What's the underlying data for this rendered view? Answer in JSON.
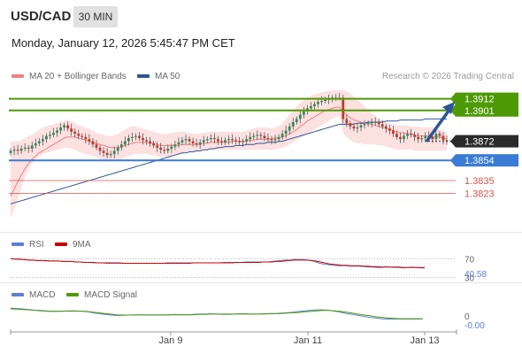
{
  "header": {
    "pair": "USD/CAD",
    "timeframe": "30 MIN",
    "datetime": "Monday, January 12, 2026 5:45:47 PM CET"
  },
  "legend": {
    "ma20": "MA 20 + Bollinger Bands",
    "ma50": "MA 50",
    "copyright": "Research © 2026 Trading Central"
  },
  "colors": {
    "resistance": "#4e9a06",
    "support_blue": "#3a7bd5",
    "support_red": "#d9534f",
    "current_price": "#2b2b2b",
    "ma20": "#f08080",
    "ma50": "#2f5597",
    "rsi": "#5b7fd6",
    "rsi_9ma": "#cc0000",
    "macd": "#5b7fd6",
    "macd_signal": "#4e9a06",
    "candle_up": "#2e8b57",
    "candle_down": "#c0392b"
  },
  "chart_data": [
    {
      "type": "candlestick",
      "ylim": [
        1.379,
        1.3925
      ],
      "series": [
        {
          "name": "MA 20 + Bollinger Bands"
        },
        {
          "name": "MA 50"
        }
      ],
      "closes": [
        1.3863,
        1.3864,
        1.3863,
        1.3865,
        1.3866,
        1.3865,
        1.3868,
        1.387,
        1.3872,
        1.3874,
        1.3877,
        1.3878,
        1.388,
        1.3882,
        1.3885,
        1.3887,
        1.3884,
        1.3881,
        1.3879,
        1.3877,
        1.3876,
        1.3874,
        1.3872,
        1.3869,
        1.3866,
        1.3863,
        1.3861,
        1.3859,
        1.386,
        1.3863,
        1.3866,
        1.3869,
        1.3872,
        1.3875,
        1.3876,
        1.3877,
        1.3875,
        1.3873,
        1.3872,
        1.387,
        1.3868,
        1.3866,
        1.3864,
        1.3863,
        1.3865,
        1.3867,
        1.3869,
        1.3871,
        1.3873,
        1.3874,
        1.3872,
        1.387,
        1.3869,
        1.3871,
        1.3873,
        1.3874,
        1.3875,
        1.3874,
        1.3872,
        1.3871,
        1.3873,
        1.3874,
        1.3873,
        1.3872,
        1.3871,
        1.3872,
        1.3874,
        1.3876,
        1.3877,
        1.3878,
        1.3877,
        1.3875,
        1.3874,
        1.3873,
        1.3874,
        1.3876,
        1.3879,
        1.3882,
        1.3886,
        1.389,
        1.3893,
        1.3897,
        1.39,
        1.3903,
        1.3905,
        1.3907,
        1.3909,
        1.391,
        1.3911,
        1.3912,
        1.3913,
        1.3913,
        1.3913,
        1.3893,
        1.3889,
        1.3886,
        1.3884,
        1.3885,
        1.3887,
        1.3888,
        1.3889,
        1.389,
        1.389,
        1.3888,
        1.3886,
        1.3884,
        1.3882,
        1.3879,
        1.3876,
        1.3874,
        1.3877,
        1.3879,
        1.3878,
        1.3876,
        1.3874,
        1.3875,
        1.3877,
        1.3876,
        1.3874,
        1.3879,
        1.3877,
        1.3873,
        1.3872
      ],
      "bands_upper": [
        1.3871,
        1.3872,
        1.3872,
        1.3873,
        1.3875,
        1.3877,
        1.3878,
        1.388,
        1.3883,
        1.3885,
        1.3886,
        1.3887,
        1.3888,
        1.3889,
        1.389,
        1.3891,
        1.3892,
        1.3891,
        1.3889,
        1.3887,
        1.3886,
        1.3885,
        1.3884,
        1.3882,
        1.388,
        1.3879,
        1.3878,
        1.3877,
        1.3877,
        1.3878,
        1.3879,
        1.3881,
        1.3883,
        1.3885,
        1.3886,
        1.3886,
        1.3885,
        1.3884,
        1.3883,
        1.3882,
        1.3881,
        1.388,
        1.3879,
        1.3879,
        1.3879,
        1.388,
        1.388,
        1.3881,
        1.3881,
        1.3881,
        1.388,
        1.3879,
        1.3879,
        1.3879,
        1.388,
        1.388,
        1.3881,
        1.3881,
        1.3881,
        1.3881,
        1.3881,
        1.3881,
        1.3881,
        1.3881,
        1.3881,
        1.3881,
        1.3882,
        1.3883,
        1.3884,
        1.3885,
        1.3885,
        1.3885,
        1.3885,
        1.3884,
        1.3885,
        1.3886,
        1.3889,
        1.3893,
        1.3897,
        1.3901,
        1.3905,
        1.3908,
        1.3911,
        1.3913,
        1.3915,
        1.3916,
        1.3917,
        1.3918,
        1.3919,
        1.3919,
        1.392,
        1.392,
        1.392,
        1.392,
        1.3919,
        1.3917,
        1.3914,
        1.3911,
        1.3908,
        1.3905,
        1.3901,
        1.3898,
        1.3896,
        1.3893,
        1.3891,
        1.389,
        1.3889,
        1.3888,
        1.3887,
        1.3887,
        1.3887,
        1.3887,
        1.3886,
        1.3886,
        1.3886,
        1.3885,
        1.3885,
        1.3885,
        1.3885,
        1.3884,
        1.3883,
        1.3882,
        1.388
      ],
      "bands_lower": [
        1.38,
        1.3808,
        1.3818,
        1.3828,
        1.3838,
        1.3845,
        1.3851,
        1.3855,
        1.3858,
        1.386,
        1.3861,
        1.3862,
        1.3863,
        1.3864,
        1.3865,
        1.3866,
        1.3866,
        1.3865,
        1.3864,
        1.3862,
        1.3861,
        1.386,
        1.3859,
        1.3858,
        1.3857,
        1.3855,
        1.3854,
        1.3853,
        1.3853,
        1.3853,
        1.3854,
        1.3855,
        1.3857,
        1.3858,
        1.3859,
        1.386,
        1.386,
        1.386,
        1.386,
        1.3859,
        1.3859,
        1.3858,
        1.3857,
        1.3857,
        1.3857,
        1.3858,
        1.3859,
        1.386,
        1.3861,
        1.3862,
        1.3862,
        1.3862,
        1.3862,
        1.3862,
        1.3863,
        1.3863,
        1.3864,
        1.3864,
        1.3864,
        1.3864,
        1.3864,
        1.3864,
        1.3864,
        1.3864,
        1.3864,
        1.3864,
        1.3864,
        1.3864,
        1.3864,
        1.3864,
        1.3864,
        1.3864,
        1.3864,
        1.3864,
        1.3864,
        1.3865,
        1.3866,
        1.3867,
        1.3869,
        1.3871,
        1.3873,
        1.3875,
        1.3877,
        1.3879,
        1.3881,
        1.3883,
        1.3885,
        1.3887,
        1.3889,
        1.3891,
        1.3893,
        1.3895,
        1.3896,
        1.388,
        1.3876,
        1.3873,
        1.3871,
        1.387,
        1.387,
        1.3869,
        1.3869,
        1.3869,
        1.3869,
        1.3868,
        1.3868,
        1.3867,
        1.3866,
        1.3865,
        1.3864,
        1.3864,
        1.3864,
        1.3864,
        1.3864,
        1.3863,
        1.3863,
        1.3863,
        1.3863,
        1.3863,
        1.3863,
        1.3863,
        1.3863,
        1.3863,
        1.3863
      ],
      "ma20": [
        1.382,
        1.3827,
        1.3834,
        1.384,
        1.3846,
        1.3851,
        1.3855,
        1.3858,
        1.3861,
        1.3863,
        1.3865,
        1.3867,
        1.3869,
        1.3871,
        1.3873,
        1.3875,
        1.3876,
        1.3876,
        1.3876,
        1.3875,
        1.3874,
        1.3873,
        1.3872,
        1.3871,
        1.387,
        1.3869,
        1.3868,
        1.3867,
        1.3866,
        1.3866,
        1.3866,
        1.3867,
        1.3868,
        1.3869,
        1.387,
        1.3871,
        1.3871,
        1.3871,
        1.3871,
        1.387,
        1.387,
        1.3869,
        1.3868,
        1.3868,
        1.3868,
        1.3868,
        1.3868,
        1.3868,
        1.3869,
        1.3869,
        1.3869,
        1.3869,
        1.3869,
        1.3869,
        1.387,
        1.387,
        1.3871,
        1.3871,
        1.3871,
        1.3871,
        1.3871,
        1.3871,
        1.3872,
        1.3872,
        1.3872,
        1.3872,
        1.3872,
        1.3873,
        1.3873,
        1.3874,
        1.3874,
        1.3874,
        1.3874,
        1.3874,
        1.3875,
        1.3875,
        1.3876,
        1.3877,
        1.3879,
        1.3881,
        1.3883,
        1.3886,
        1.3888,
        1.3891,
        1.3893,
        1.3895,
        1.3897,
        1.3899,
        1.3901,
        1.3902,
        1.3903,
        1.3904,
        1.3904,
        1.39,
        1.3897,
        1.3894,
        1.3892,
        1.3891,
        1.389,
        1.3889,
        1.3889,
        1.3888,
        1.3887,
        1.3886,
        1.3885,
        1.3884,
        1.3883,
        1.3882,
        1.3881,
        1.388,
        1.388,
        1.3879,
        1.3879,
        1.3878,
        1.3877,
        1.3877,
        1.3877,
        1.3877,
        1.3876,
        1.3876,
        1.3876,
        1.3875,
        1.3874
      ],
      "ma50": [
        1.3813,
        1.3814,
        1.3815,
        1.3816,
        1.3817,
        1.3818,
        1.3819,
        1.382,
        1.3821,
        1.3822,
        1.3823,
        1.3824,
        1.3825,
        1.3826,
        1.3827,
        1.3828,
        1.3829,
        1.383,
        1.3831,
        1.3832,
        1.3833,
        1.3834,
        1.3835,
        1.3836,
        1.3837,
        1.3838,
        1.3839,
        1.384,
        1.3841,
        1.3842,
        1.3843,
        1.3844,
        1.3845,
        1.3846,
        1.3847,
        1.3848,
        1.3849,
        1.385,
        1.3851,
        1.3852,
        1.3853,
        1.3854,
        1.3855,
        1.3856,
        1.3857,
        1.3858,
        1.3859,
        1.386,
        1.3861,
        1.3861,
        1.3862,
        1.3862,
        1.3863,
        1.3863,
        1.3864,
        1.3864,
        1.3865,
        1.3865,
        1.3866,
        1.3866,
        1.3867,
        1.3867,
        1.3867,
        1.3868,
        1.3868,
        1.3868,
        1.3869,
        1.3869,
        1.3869,
        1.387,
        1.387,
        1.387,
        1.3871,
        1.3871,
        1.3871,
        1.3872,
        1.3872,
        1.3873,
        1.3874,
        1.3875,
        1.3876,
        1.3877,
        1.3878,
        1.3879,
        1.388,
        1.3881,
        1.3882,
        1.3883,
        1.3884,
        1.3885,
        1.3886,
        1.3887,
        1.3888,
        1.3888,
        1.3888,
        1.3888,
        1.3888,
        1.3889,
        1.3889,
        1.3889,
        1.389,
        1.389,
        1.389,
        1.389,
        1.389,
        1.3891,
        1.3891,
        1.3891,
        1.3891,
        1.3892,
        1.3892,
        1.3892,
        1.3892,
        1.3892,
        1.3892,
        1.3892,
        1.3893,
        1.3893,
        1.3893,
        1.3893,
        1.3893,
        1.3893,
        1.3893
      ],
      "levels": [
        {
          "value": 1.3912,
          "label": "1.3912",
          "kind": "resistance"
        },
        {
          "value": 1.3901,
          "label": "1.3901",
          "kind": "resistance"
        },
        {
          "value": 1.3872,
          "label": "1.3872",
          "kind": "current"
        },
        {
          "value": 1.3854,
          "label": "1.3854",
          "kind": "support"
        },
        {
          "value": 1.3835,
          "label": "1.3835",
          "kind": "support_minor"
        },
        {
          "value": 1.3823,
          "label": "1.3823",
          "kind": "support_minor"
        }
      ],
      "x_tick_labels": [
        "Jan 9",
        "Jan 11",
        "Jan 13"
      ]
    },
    {
      "type": "line",
      "ylim": [
        25,
        80
      ],
      "series": [
        {
          "name": "RSI",
          "values": [
            70,
            69,
            68,
            68,
            67,
            67,
            66,
            66,
            65,
            65,
            65,
            65,
            64,
            64,
            64,
            63,
            63,
            62,
            62,
            61,
            61,
            61,
            60,
            60,
            60,
            60,
            60,
            60,
            60,
            60,
            60,
            60,
            60,
            60,
            60,
            60,
            61,
            61,
            61,
            61,
            61,
            61,
            61,
            61,
            61,
            61,
            61,
            61,
            61,
            62,
            62,
            62,
            62,
            62,
            63,
            63,
            63,
            63,
            63,
            63,
            64,
            65,
            66,
            67,
            67,
            68,
            68,
            68,
            67,
            66,
            63,
            60,
            58,
            57,
            56,
            55,
            55,
            55,
            54,
            54,
            54,
            53,
            52,
            52,
            51,
            51,
            53,
            52,
            51,
            51,
            50,
            51,
            52,
            51,
            50,
            50
          ]
        },
        {
          "name": "9MA",
          "values": [
            70,
            69,
            69,
            68,
            67,
            67,
            66,
            66,
            66,
            65,
            65,
            65,
            64,
            64,
            64,
            63,
            63,
            62,
            62,
            62,
            61,
            61,
            61,
            61,
            61,
            61,
            60,
            60,
            60,
            60,
            60,
            60,
            60,
            60,
            60,
            60,
            60,
            60,
            60,
            60,
            60,
            60,
            61,
            61,
            61,
            61,
            61,
            61,
            61,
            61,
            61,
            61,
            62,
            62,
            62,
            62,
            62,
            62,
            63,
            63,
            63,
            64,
            64,
            65,
            66,
            67,
            67,
            67,
            67,
            66,
            65,
            63,
            61,
            59,
            58,
            57,
            56,
            56,
            55,
            55,
            55,
            54,
            54,
            53,
            53,
            52,
            52,
            52,
            52,
            52,
            51,
            51,
            51,
            51,
            51,
            51
          ]
        }
      ],
      "y_tick_labels": [
        "70",
        "40.58",
        "30"
      ]
    },
    {
      "type": "line",
      "ylim": [
        -0.004,
        0.003
      ],
      "series": [
        {
          "name": "MACD",
          "values": [
            0.0024,
            0.0023,
            0.0022,
            0.002,
            0.0018,
            0.0016,
            0.0015,
            0.0014,
            0.0014,
            0.0015,
            0.0016,
            0.0016,
            0.0015,
            0.0013,
            0.001,
            0.0007,
            0.0005,
            0.0003,
            0.0002,
            0.0002,
            0.0003,
            0.0004,
            0.0004,
            0.0003,
            0.0003,
            0.0003,
            0.0003,
            0.0004,
            0.0005,
            0.0004,
            0.0004,
            0.0005,
            0.0006,
            0.0006,
            0.0007,
            0.0006,
            0.0005,
            0.0005,
            0.0006,
            0.0007,
            0.0007,
            0.0006,
            0.0006,
            0.0007,
            0.0008,
            0.0008,
            0.0009,
            0.001,
            0.0012,
            0.0014,
            0.0016,
            0.0018,
            0.0019,
            0.0019,
            0.0018,
            0.0015,
            0.0012,
            0.0008,
            0.0005,
            0.0002,
            -0.0001,
            -0.0004,
            -0.0006,
            -0.0008,
            -0.0009,
            -0.0009,
            -0.0009,
            -0.0009,
            -0.0009,
            -0.0009,
            -0.0008
          ]
        },
        {
          "name": "MACD Signal",
          "values": [
            0.0022,
            0.0021,
            0.002,
            0.0019,
            0.0018,
            0.0017,
            0.0016,
            0.0015,
            0.0015,
            0.0015,
            0.0015,
            0.0015,
            0.0015,
            0.0014,
            0.0012,
            0.001,
            0.0008,
            0.0006,
            0.0004,
            0.0003,
            0.0003,
            0.0003,
            0.0004,
            0.0004,
            0.0004,
            0.0004,
            0.0004,
            0.0004,
            0.0004,
            0.0004,
            0.0004,
            0.0004,
            0.0005,
            0.0005,
            0.0006,
            0.0006,
            0.0006,
            0.0006,
            0.0006,
            0.0006,
            0.0006,
            0.0006,
            0.0006,
            0.0006,
            0.0007,
            0.0007,
            0.0008,
            0.0009,
            0.001,
            0.0011,
            0.0013,
            0.0014,
            0.0016,
            0.0017,
            0.0017,
            0.0016,
            0.0014,
            0.0012,
            0.0009,
            0.0006,
            0.0003,
            0.0001,
            -0.0002,
            -0.0004,
            -0.0006,
            -0.0007,
            -0.0008,
            -0.0008,
            -0.0008,
            -0.0008,
            -0.0008
          ]
        }
      ],
      "y_tick_labels": [
        "0",
        "-0.00"
      ]
    }
  ],
  "rsi_legend": {
    "rsi": "RSI",
    "ma": "9MA"
  },
  "macd_legend": {
    "macd": "MACD",
    "signal": "MACD Signal"
  }
}
